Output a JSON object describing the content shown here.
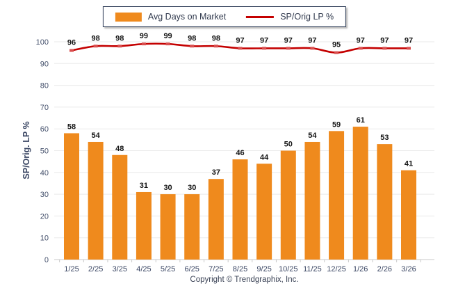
{
  "legend": {
    "bar_label": "Avg Days on Market",
    "line_label": "SP/Orig LP %"
  },
  "footer": {
    "copyright": "Copyright © Trendgraphix, Inc."
  },
  "colors": {
    "bar": "#EF8A1D",
    "line": "#C40000",
    "line_marker": "#D94F4F",
    "grid": "#EAEAEA",
    "axis": "#C9C9C9",
    "tick_text": "#44506B",
    "category_text": "#3A4663",
    "value_label": "#141414"
  },
  "chart_data": {
    "type": "bar",
    "title": "",
    "xlabel": "",
    "ylabel": "SP/Orig. LP %",
    "categories": [
      "1/25",
      "2/25",
      "3/25",
      "4/25",
      "5/25",
      "6/25",
      "7/25",
      "8/25",
      "9/25",
      "10/25",
      "11/25",
      "12/25",
      "1/26",
      "2/26",
      "3/26"
    ],
    "series": [
      {
        "name": "Avg Days on Market",
        "type": "bar",
        "values": [
          58,
          54,
          48,
          31,
          30,
          30,
          37,
          46,
          44,
          50,
          54,
          59,
          61,
          53,
          41
        ]
      },
      {
        "name": "SP/Orig LP %",
        "type": "line",
        "values": [
          96,
          98,
          98,
          99,
          99,
          98,
          98,
          97,
          97,
          97,
          97,
          95,
          97,
          97,
          97
        ]
      }
    ],
    "ylim": [
      0,
      100
    ],
    "yticks": [
      0,
      10,
      20,
      30,
      40,
      50,
      60,
      70,
      80,
      90,
      100
    ],
    "grid": true,
    "legend_position": "top-center",
    "data_labels": true
  }
}
